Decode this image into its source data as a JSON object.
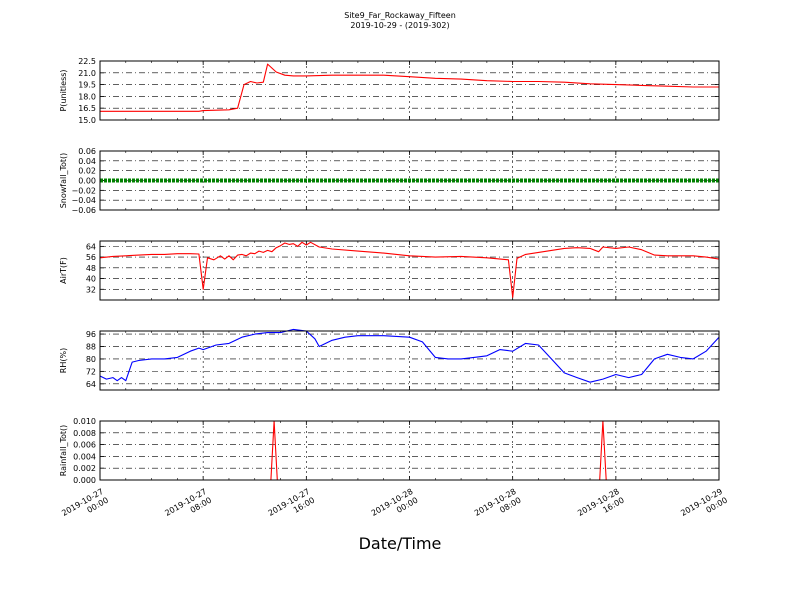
{
  "title": "Site9_Far_Rockaway_Fifteen",
  "subtitle": "2019-10-29 - (2019-302)",
  "xlabel": "Date/Time",
  "chart_data": {
    "type": "line",
    "x_range": [
      "2019-10-27 00:00",
      "2019-10-29 00:00"
    ],
    "x_ticks": [
      {
        "value": "2019-10-27 00:00",
        "line1": "2019-10-27",
        "line2": "00:00"
      },
      {
        "value": "2019-10-27 08:00",
        "line1": "2019-10-27",
        "line2": "08:00"
      },
      {
        "value": "2019-10-27 16:00",
        "line1": "2019-10-27",
        "line2": "16:00"
      },
      {
        "value": "2019-10-28 00:00",
        "line1": "2019-10-28",
        "line2": "00:00"
      },
      {
        "value": "2019-10-28 08:00",
        "line1": "2019-10-28",
        "line2": "08:00"
      },
      {
        "value": "2019-10-28 16:00",
        "line1": "2019-10-28",
        "line2": "16:00"
      },
      {
        "value": "2019-10-29 00:00",
        "line1": "2019-10-29",
        "line2": "00:00"
      }
    ],
    "grid": true,
    "panels": [
      {
        "ylabel": "P(unitless)",
        "ylim": [
          15.0,
          22.5
        ],
        "yticks": [
          "15.0",
          "16.5",
          "18.0",
          "19.5",
          "21.0",
          "22.5"
        ],
        "color": "#ff0000",
        "style": "line",
        "points": [
          [
            "2019-10-27 00:00",
            16.1
          ],
          [
            "2019-10-27 04:00",
            16.1
          ],
          [
            "2019-10-27 07:40",
            16.1
          ],
          [
            "2019-10-27 08:00",
            16.2
          ],
          [
            "2019-10-27 10:00",
            16.3
          ],
          [
            "2019-10-27 10:40",
            16.5
          ],
          [
            "2019-10-27 11:10",
            19.5
          ],
          [
            "2019-10-27 11:40",
            19.9
          ],
          [
            "2019-10-27 12:10",
            19.7
          ],
          [
            "2019-10-27 12:40",
            19.8
          ],
          [
            "2019-10-27 13:00",
            22.1
          ],
          [
            "2019-10-27 13:40",
            21.1
          ],
          [
            "2019-10-27 14:20",
            20.7
          ],
          [
            "2019-10-27 15:00",
            20.6
          ],
          [
            "2019-10-27 16:00",
            20.6
          ],
          [
            "2019-10-27 18:00",
            20.7
          ],
          [
            "2019-10-27 20:00",
            20.7
          ],
          [
            "2019-10-27 22:00",
            20.7
          ],
          [
            "2019-10-28 00:00",
            20.5
          ],
          [
            "2019-10-28 02:00",
            20.3
          ],
          [
            "2019-10-28 04:00",
            20.2
          ],
          [
            "2019-10-28 06:00",
            20.0
          ],
          [
            "2019-10-28 08:00",
            19.9
          ],
          [
            "2019-10-28 10:00",
            19.9
          ],
          [
            "2019-10-28 12:00",
            19.8
          ],
          [
            "2019-10-28 14:00",
            19.6
          ],
          [
            "2019-10-28 16:00",
            19.5
          ],
          [
            "2019-10-28 18:00",
            19.4
          ],
          [
            "2019-10-28 20:00",
            19.3
          ],
          [
            "2019-10-28 22:00",
            19.2
          ],
          [
            "2019-10-29 00:00",
            19.2
          ]
        ]
      },
      {
        "ylabel": "Snowfall_Tot()",
        "ylim": [
          -0.06,
          0.06
        ],
        "yticks": [
          "−0.06",
          "−0.04",
          "−0.02",
          "0.00",
          "0.02",
          "0.04",
          "0.06"
        ],
        "color": "#008000",
        "style": "constant",
        "points": [
          [
            "2019-10-27 00:00",
            0.0
          ],
          [
            "2019-10-29 00:00",
            0.0
          ]
        ]
      },
      {
        "ylabel": "AirT(F)",
        "ylim": [
          24,
          68
        ],
        "yticks": [
          "32",
          "40",
          "48",
          "56",
          "64"
        ],
        "color": "#ff0000",
        "style": "line",
        "points": [
          [
            "2019-10-27 00:00",
            55.5
          ],
          [
            "2019-10-27 01:00",
            56.5
          ],
          [
            "2019-10-27 02:00",
            57.0
          ],
          [
            "2019-10-27 03:00",
            57.5
          ],
          [
            "2019-10-27 04:00",
            58.0
          ],
          [
            "2019-10-27 05:00",
            58.0
          ],
          [
            "2019-10-27 06:00",
            58.5
          ],
          [
            "2019-10-27 07:00",
            58.5
          ],
          [
            "2019-10-27 07:40",
            58.3
          ],
          [
            "2019-10-27 08:00",
            32.0
          ],
          [
            "2019-10-27 08:20",
            55.5
          ],
          [
            "2019-10-27 08:50",
            54.0
          ],
          [
            "2019-10-27 09:20",
            57.0
          ],
          [
            "2019-10-27 09:40",
            54.5
          ],
          [
            "2019-10-27 10:00",
            57.0
          ],
          [
            "2019-10-27 10:20",
            54.0
          ],
          [
            "2019-10-27 10:40",
            57.5
          ],
          [
            "2019-10-27 11:00",
            58.0
          ],
          [
            "2019-10-27 11:20",
            57.0
          ],
          [
            "2019-10-27 11:40",
            59.0
          ],
          [
            "2019-10-27 12:00",
            58.5
          ],
          [
            "2019-10-27 12:20",
            60.5
          ],
          [
            "2019-10-27 12:40",
            59.5
          ],
          [
            "2019-10-27 13:00",
            61.0
          ],
          [
            "2019-10-27 13:20",
            60.0
          ],
          [
            "2019-10-27 13:40",
            63.0
          ],
          [
            "2019-10-27 14:00",
            64.5
          ],
          [
            "2019-10-27 14:20",
            66.5
          ],
          [
            "2019-10-27 14:40",
            65.5
          ],
          [
            "2019-10-27 15:00",
            66.0
          ],
          [
            "2019-10-27 15:20",
            64.0
          ],
          [
            "2019-10-27 15:40",
            67.0
          ],
          [
            "2019-10-27 16:00",
            65.0
          ],
          [
            "2019-10-27 16:20",
            67.0
          ],
          [
            "2019-10-27 17:00",
            63.5
          ],
          [
            "2019-10-27 18:00",
            62.0
          ],
          [
            "2019-10-27 20:00",
            60.5
          ],
          [
            "2019-10-27 22:00",
            59.0
          ],
          [
            "2019-10-28 00:00",
            57.0
          ],
          [
            "2019-10-28 02:00",
            56.0
          ],
          [
            "2019-10-28 04:00",
            56.5
          ],
          [
            "2019-10-28 06:00",
            55.5
          ],
          [
            "2019-10-28 07:40",
            54.0
          ],
          [
            "2019-10-28 08:00",
            26.0
          ],
          [
            "2019-10-28 08:20",
            55.0
          ],
          [
            "2019-10-28 09:00",
            58.0
          ],
          [
            "2019-10-28 10:00",
            59.5
          ],
          [
            "2019-10-28 11:00",
            61.0
          ],
          [
            "2019-10-28 12:00",
            62.5
          ],
          [
            "2019-10-28 13:00",
            63.0
          ],
          [
            "2019-10-28 14:00",
            62.5
          ],
          [
            "2019-10-28 14:40",
            60.0
          ],
          [
            "2019-10-28 15:00",
            63.5
          ],
          [
            "2019-10-28 16:00",
            62.5
          ],
          [
            "2019-10-28 17:00",
            63.5
          ],
          [
            "2019-10-28 18:00",
            61.5
          ],
          [
            "2019-10-28 19:00",
            57.5
          ],
          [
            "2019-10-28 20:00",
            57.0
          ],
          [
            "2019-10-28 22:00",
            57.0
          ],
          [
            "2019-10-28 23:00",
            56.0
          ],
          [
            "2019-10-29 00:00",
            54.5
          ]
        ]
      },
      {
        "ylabel": "RH(%)",
        "ylim": [
          60,
          98
        ],
        "yticks": [
          "64",
          "72",
          "80",
          "88",
          "96"
        ],
        "color": "#0000ff",
        "style": "line",
        "points": [
          [
            "2019-10-27 00:00",
            69
          ],
          [
            "2019-10-27 00:30",
            67
          ],
          [
            "2019-10-27 01:00",
            68
          ],
          [
            "2019-10-27 01:20",
            66
          ],
          [
            "2019-10-27 01:40",
            68
          ],
          [
            "2019-10-27 02:00",
            66
          ],
          [
            "2019-10-27 02:30",
            78
          ],
          [
            "2019-10-27 03:00",
            79
          ],
          [
            "2019-10-27 04:00",
            80
          ],
          [
            "2019-10-27 05:00",
            80
          ],
          [
            "2019-10-27 06:00",
            81
          ],
          [
            "2019-10-27 07:00",
            85
          ],
          [
            "2019-10-27 07:40",
            87
          ],
          [
            "2019-10-27 08:00",
            86
          ],
          [
            "2019-10-27 09:00",
            89
          ],
          [
            "2019-10-27 10:00",
            90
          ],
          [
            "2019-10-27 11:00",
            94
          ],
          [
            "2019-10-27 12:00",
            96
          ],
          [
            "2019-10-27 13:00",
            97
          ],
          [
            "2019-10-27 14:00",
            97
          ],
          [
            "2019-10-27 15:00",
            99
          ],
          [
            "2019-10-27 16:00",
            98
          ],
          [
            "2019-10-27 16:40",
            93
          ],
          [
            "2019-10-27 17:00",
            88
          ],
          [
            "2019-10-27 18:00",
            92
          ],
          [
            "2019-10-27 19:00",
            94
          ],
          [
            "2019-10-27 20:00",
            95
          ],
          [
            "2019-10-27 22:00",
            95
          ],
          [
            "2019-10-28 00:00",
            94
          ],
          [
            "2019-10-28 01:00",
            91
          ],
          [
            "2019-10-28 02:00",
            81
          ],
          [
            "2019-10-28 03:00",
            80
          ],
          [
            "2019-10-28 04:00",
            80
          ],
          [
            "2019-10-28 05:00",
            81
          ],
          [
            "2019-10-28 06:00",
            82
          ],
          [
            "2019-10-28 07:00",
            86
          ],
          [
            "2019-10-28 08:00",
            85
          ],
          [
            "2019-10-28 09:00",
            90
          ],
          [
            "2019-10-28 10:00",
            89
          ],
          [
            "2019-10-28 11:00",
            80
          ],
          [
            "2019-10-28 12:00",
            71
          ],
          [
            "2019-10-28 13:00",
            68
          ],
          [
            "2019-10-28 14:00",
            65
          ],
          [
            "2019-10-28 15:00",
            67
          ],
          [
            "2019-10-28 16:00",
            70
          ],
          [
            "2019-10-28 17:00",
            68
          ],
          [
            "2019-10-28 18:00",
            70
          ],
          [
            "2019-10-28 19:00",
            80
          ],
          [
            "2019-10-28 20:00",
            83
          ],
          [
            "2019-10-28 21:00",
            81
          ],
          [
            "2019-10-28 22:00",
            80
          ],
          [
            "2019-10-28 23:00",
            85
          ],
          [
            "2019-10-29 00:00",
            94
          ]
        ]
      },
      {
        "ylabel": "Rainfall_Tot()",
        "ylim": [
          0.0,
          0.01
        ],
        "yticks": [
          "0.000",
          "0.002",
          "0.004",
          "0.006",
          "0.008",
          "0.010"
        ],
        "color": "#ff0000",
        "style": "line",
        "points": [
          [
            "2019-10-27 00:00",
            0.0
          ],
          [
            "2019-10-27 13:15",
            0.0
          ],
          [
            "2019-10-27 13:30",
            0.01
          ],
          [
            "2019-10-27 13:45",
            0.0
          ],
          [
            "2019-10-28 14:45",
            0.0
          ],
          [
            "2019-10-28 15:00",
            0.01
          ],
          [
            "2019-10-28 15:15",
            0.0
          ],
          [
            "2019-10-29 00:00",
            0.0
          ]
        ]
      }
    ]
  }
}
